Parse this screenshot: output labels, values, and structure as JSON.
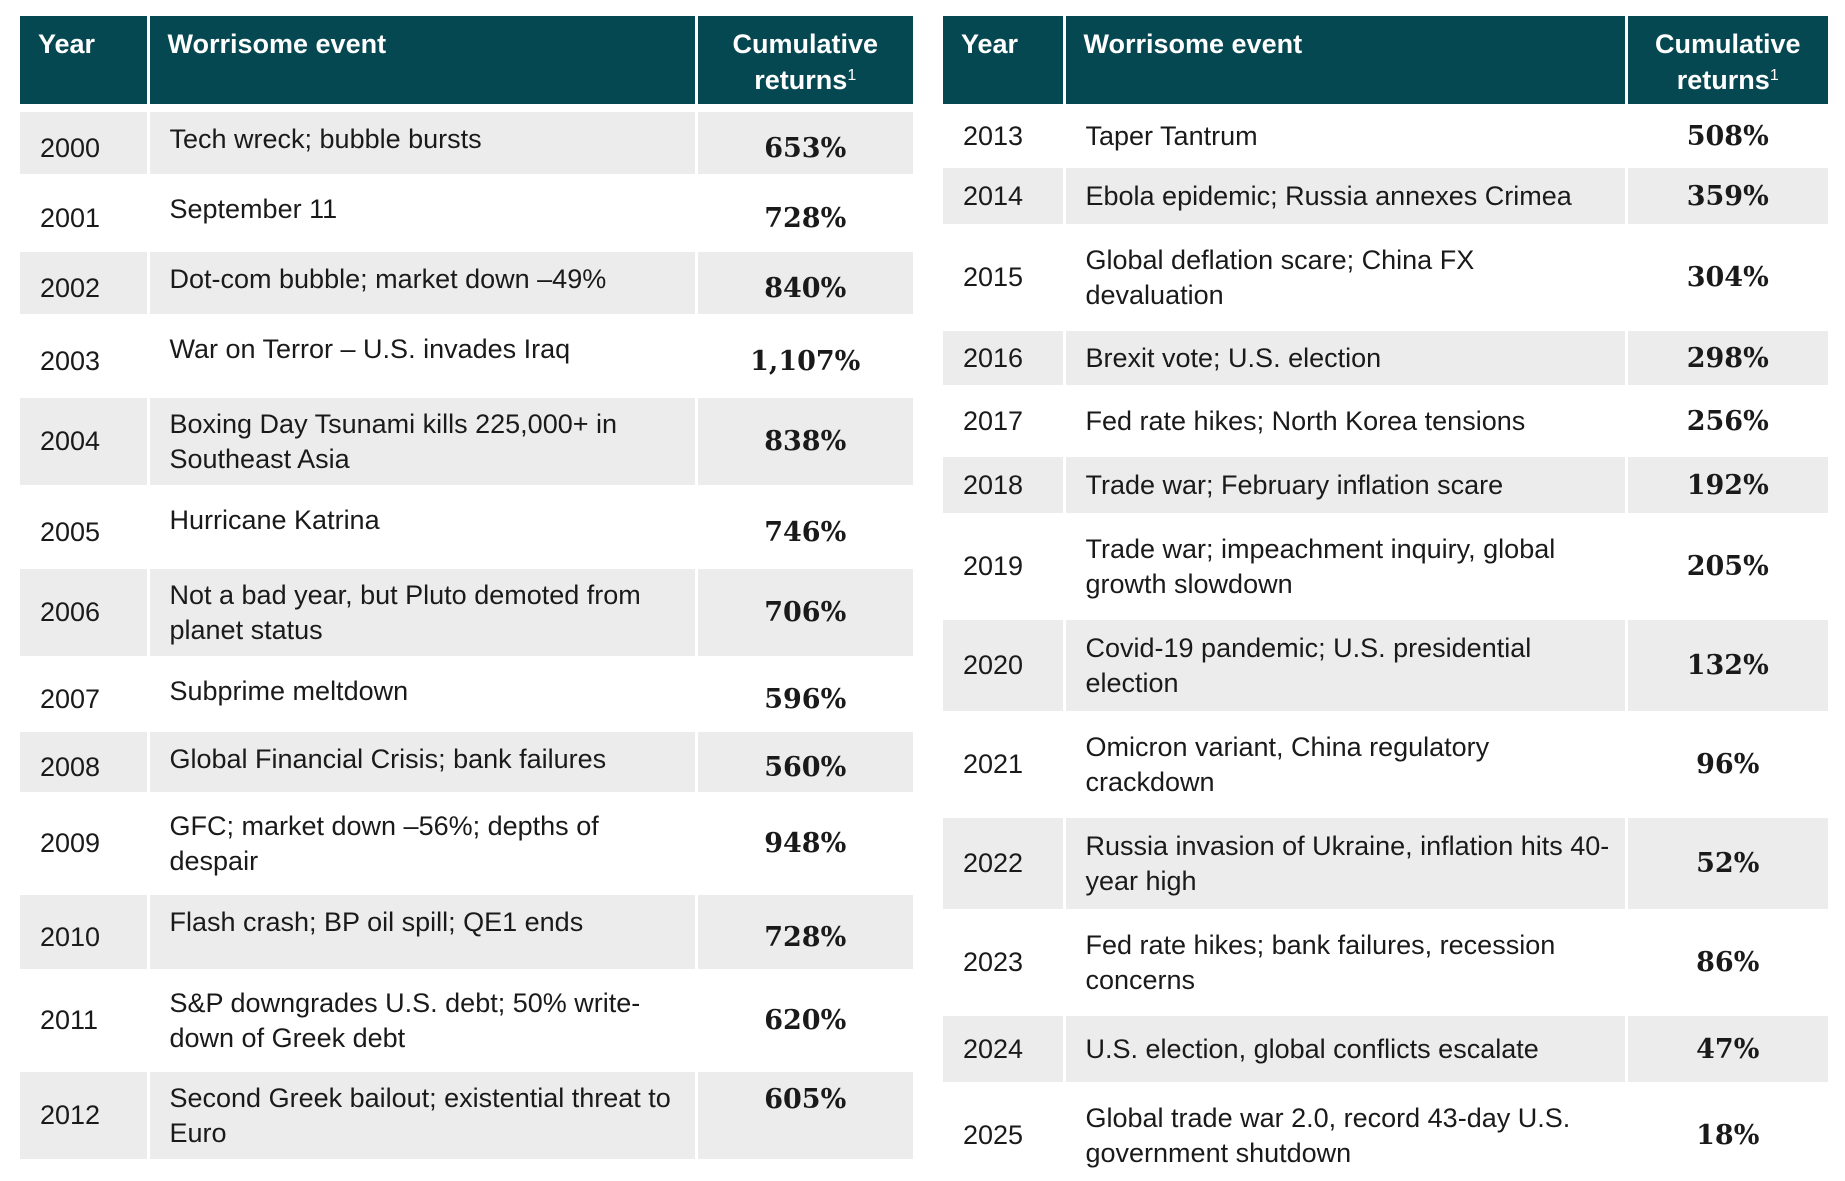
{
  "headers": {
    "year": "Year",
    "event": "Worrisome event",
    "returns_line1": "Cumulative",
    "returns_line2": "returns",
    "returns_footnote": "1"
  },
  "left_rows": [
    {
      "year": "2000",
      "event": "Tech wreck; bubble bursts",
      "returns": "653%"
    },
    {
      "year": "2001",
      "event": "September 11",
      "returns": "728%"
    },
    {
      "year": "2002",
      "event": "Dot-com bubble; market down –49%",
      "returns": "840%"
    },
    {
      "year": "2003",
      "event": "War on Terror – U.S. invades Iraq",
      "returns": "1,107%"
    },
    {
      "year": "2004",
      "event": "Boxing Day Tsunami kills 225,000+ in Southeast Asia",
      "returns": "838%"
    },
    {
      "year": "2005",
      "event": "Hurricane Katrina",
      "returns": "746%"
    },
    {
      "year": "2006",
      "event": "Not a bad year, but Pluto demoted from planet status",
      "returns": "706%"
    },
    {
      "year": "2007",
      "event": "Subprime meltdown",
      "returns": "596%"
    },
    {
      "year": "2008",
      "event": "Global Financial Crisis; bank failures",
      "returns": "560%"
    },
    {
      "year": "2009",
      "event": "GFC; market down –56%; depths of despair",
      "returns": "948%"
    },
    {
      "year": "2010",
      "event": "Flash crash; BP oil spill; QE1 ends",
      "returns": "728%"
    },
    {
      "year": "2011",
      "event": "S&P downgrades U.S. debt; 50% write-down of Greek debt",
      "returns": "620%"
    },
    {
      "year": "2012",
      "event": "Second Greek bailout; existential threat to Euro",
      "returns": "605%"
    }
  ],
  "right_rows": [
    {
      "year": "2013",
      "event": "Taper Tantrum",
      "returns": "508%"
    },
    {
      "year": "2014",
      "event": "Ebola epidemic; Russia annexes Crimea",
      "returns": "359%"
    },
    {
      "year": "2015",
      "event": "Global deflation scare; China FX devaluation",
      "returns": "304%"
    },
    {
      "year": "2016",
      "event": "Brexit vote; U.S. election",
      "returns": "298%"
    },
    {
      "year": "2017",
      "event": "Fed rate hikes; North Korea tensions",
      "returns": "256%"
    },
    {
      "year": "2018",
      "event": "Trade war; February inflation scare",
      "returns": "192%"
    },
    {
      "year": "2019",
      "event": "Trade war; impeachment inquiry, global growth slowdown",
      "returns": "205%"
    },
    {
      "year": "2020",
      "event": "Covid-19 pandemic; U.S. presidential election",
      "returns": "132%"
    },
    {
      "year": "2021",
      "event": "Omicron variant, China regulatory crackdown",
      "returns": "96%"
    },
    {
      "year": "2022",
      "event": "Russia invasion of Ukraine, inflation hits 40-year high",
      "returns": "52%"
    },
    {
      "year": "2023",
      "event": "Fed rate hikes; bank failures, recession concerns",
      "returns": "86%"
    },
    {
      "year": "2024",
      "event": "U.S. election, global conflicts escalate",
      "returns": "47%"
    },
    {
      "year": "2025",
      "event": "Global trade war 2.0, record 43-day U.S. government shutdown",
      "returns": "18%"
    }
  ],
  "colors": {
    "header_bg": "#064852",
    "header_text": "#ffffff",
    "row_shade": "#ececec"
  }
}
